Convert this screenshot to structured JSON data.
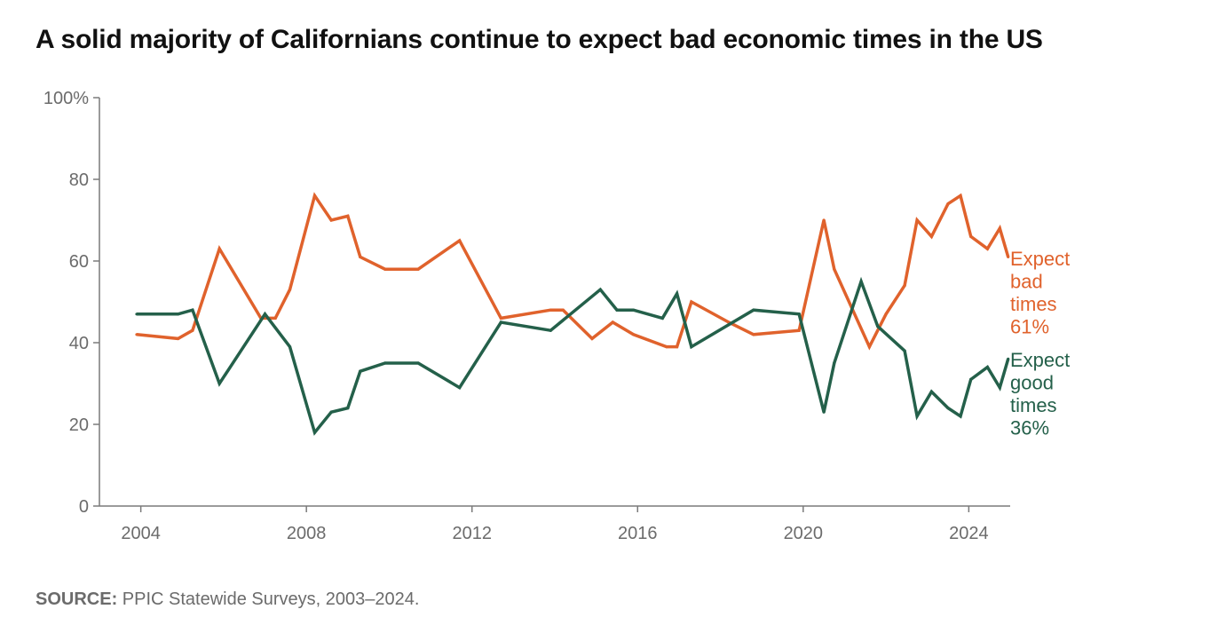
{
  "chart_data": {
    "type": "line",
    "title": "A solid majority of Californians continue to expect bad economic times in the US",
    "xlabel": "",
    "ylabel": "",
    "xlim": [
      2003.0,
      2025.0
    ],
    "ylim": [
      0,
      100
    ],
    "x_ticks": [
      2004,
      2008,
      2012,
      2016,
      2020,
      2024
    ],
    "y_ticks": [
      {
        "value": 0,
        "label": "0"
      },
      {
        "value": 20,
        "label": "20"
      },
      {
        "value": 40,
        "label": "40"
      },
      {
        "value": 60,
        "label": "60"
      },
      {
        "value": 80,
        "label": "80"
      },
      {
        "value": 100,
        "label": "100%"
      }
    ],
    "grid": false,
    "legend": "direct labels at line ends",
    "series": [
      {
        "key": "bad",
        "color": "#e0622c",
        "label_lines": [
          "Expect",
          "bad",
          "times",
          "61%"
        ],
        "points": [
          {
            "x": 2003.9,
            "y": 42
          },
          {
            "x": 2004.9,
            "y": 41
          },
          {
            "x": 2005.25,
            "y": 43
          },
          {
            "x": 2005.9,
            "y": 63
          },
          {
            "x": 2006.9,
            "y": 46
          },
          {
            "x": 2007.25,
            "y": 46
          },
          {
            "x": 2007.6,
            "y": 53
          },
          {
            "x": 2008.2,
            "y": 76
          },
          {
            "x": 2008.6,
            "y": 70
          },
          {
            "x": 2009.0,
            "y": 71
          },
          {
            "x": 2009.3,
            "y": 61
          },
          {
            "x": 2009.9,
            "y": 58
          },
          {
            "x": 2010.7,
            "y": 58
          },
          {
            "x": 2011.7,
            "y": 65
          },
          {
            "x": 2012.7,
            "y": 46
          },
          {
            "x": 2013.9,
            "y": 48
          },
          {
            "x": 2014.2,
            "y": 48
          },
          {
            "x": 2014.9,
            "y": 41
          },
          {
            "x": 2015.4,
            "y": 45
          },
          {
            "x": 2015.9,
            "y": 42
          },
          {
            "x": 2016.7,
            "y": 39
          },
          {
            "x": 2016.95,
            "y": 39
          },
          {
            "x": 2017.3,
            "y": 50
          },
          {
            "x": 2018.2,
            "y": 45
          },
          {
            "x": 2018.8,
            "y": 42
          },
          {
            "x": 2019.9,
            "y": 43
          },
          {
            "x": 2020.5,
            "y": 70
          },
          {
            "x": 2020.75,
            "y": 58
          },
          {
            "x": 2021.6,
            "y": 39
          },
          {
            "x": 2022.0,
            "y": 47
          },
          {
            "x": 2022.45,
            "y": 54
          },
          {
            "x": 2022.75,
            "y": 70
          },
          {
            "x": 2023.1,
            "y": 66
          },
          {
            "x": 2023.5,
            "y": 74
          },
          {
            "x": 2023.8,
            "y": 76
          },
          {
            "x": 2024.05,
            "y": 66
          },
          {
            "x": 2024.45,
            "y": 63
          },
          {
            "x": 2024.75,
            "y": 68
          },
          {
            "x": 2024.95,
            "y": 61
          }
        ]
      },
      {
        "key": "good",
        "color": "#24604a",
        "label_lines": [
          "Expect",
          "good",
          "times",
          "36%"
        ],
        "points": [
          {
            "x": 2003.9,
            "y": 47
          },
          {
            "x": 2004.9,
            "y": 47
          },
          {
            "x": 2005.25,
            "y": 48
          },
          {
            "x": 2005.9,
            "y": 30
          },
          {
            "x": 2007.0,
            "y": 47
          },
          {
            "x": 2007.6,
            "y": 39
          },
          {
            "x": 2008.2,
            "y": 18
          },
          {
            "x": 2008.6,
            "y": 23
          },
          {
            "x": 2009.0,
            "y": 24
          },
          {
            "x": 2009.3,
            "y": 33
          },
          {
            "x": 2009.9,
            "y": 35
          },
          {
            "x": 2010.7,
            "y": 35
          },
          {
            "x": 2011.7,
            "y": 29
          },
          {
            "x": 2012.7,
            "y": 45
          },
          {
            "x": 2013.9,
            "y": 43
          },
          {
            "x": 2015.1,
            "y": 53
          },
          {
            "x": 2015.5,
            "y": 48
          },
          {
            "x": 2015.9,
            "y": 48
          },
          {
            "x": 2016.6,
            "y": 46
          },
          {
            "x": 2016.95,
            "y": 52
          },
          {
            "x": 2017.3,
            "y": 39
          },
          {
            "x": 2018.8,
            "y": 48
          },
          {
            "x": 2019.9,
            "y": 47
          },
          {
            "x": 2020.5,
            "y": 23
          },
          {
            "x": 2020.75,
            "y": 35
          },
          {
            "x": 2021.4,
            "y": 55
          },
          {
            "x": 2021.8,
            "y": 44
          },
          {
            "x": 2022.45,
            "y": 38
          },
          {
            "x": 2022.75,
            "y": 22
          },
          {
            "x": 2023.1,
            "y": 28
          },
          {
            "x": 2023.5,
            "y": 24
          },
          {
            "x": 2023.8,
            "y": 22
          },
          {
            "x": 2024.05,
            "y": 31
          },
          {
            "x": 2024.45,
            "y": 34
          },
          {
            "x": 2024.75,
            "y": 29
          },
          {
            "x": 2024.95,
            "y": 36
          }
        ]
      }
    ]
  },
  "source": {
    "label": "SOURCE:",
    "text": " PPIC Statewide Surveys, 2003–2024."
  }
}
